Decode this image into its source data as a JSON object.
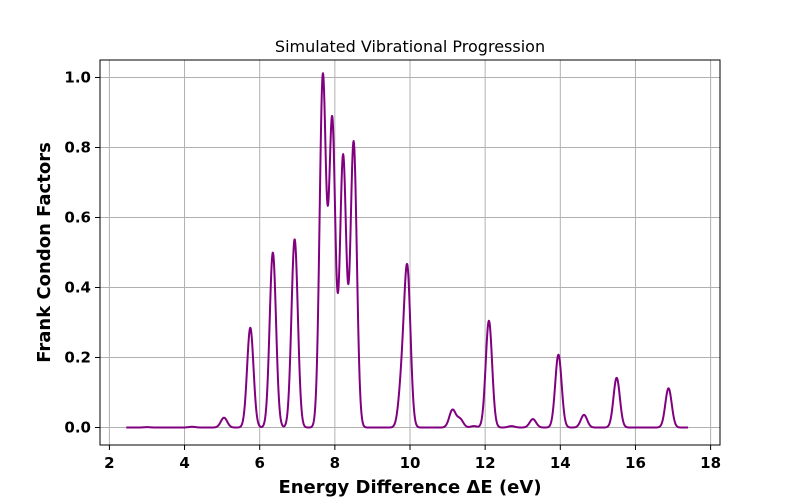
{
  "chart_data": {
    "type": "line",
    "title": "Simulated Vibrational Progression",
    "xlabel": "Energy Difference ΔE (eV)",
    "ylabel": "Frank Condon Factors",
    "xlim": [
      1.75,
      18.25
    ],
    "ylim": [
      -0.05,
      1.05
    ],
    "xticks": [
      2,
      4,
      6,
      8,
      10,
      12,
      14,
      16,
      18
    ],
    "yticks": [
      0.0,
      0.2,
      0.4,
      0.6,
      0.8,
      1.0
    ],
    "xtick_labels": [
      "2",
      "4",
      "6",
      "8",
      "10",
      "12",
      "14",
      "16",
      "18"
    ],
    "ytick_labels": [
      "0.0",
      "0.2",
      "0.4",
      "0.6",
      "0.8",
      "1.0"
    ],
    "grid": true,
    "x_range": [
      2.45,
      17.4
    ],
    "line_width": 0.085,
    "series": [
      {
        "color": "#800080",
        "peaks": [
          {
            "x": 3.0,
            "y": 0.001
          },
          {
            "x": 4.2,
            "y": 0.002
          },
          {
            "x": 5.05,
            "y": 0.028
          },
          {
            "x": 5.75,
            "y": 0.285
          },
          {
            "x": 6.35,
            "y": 0.5
          },
          {
            "x": 6.93,
            "y": 0.538
          },
          {
            "x": 7.68,
            "y": 1.0
          },
          {
            "x": 7.93,
            "y": 0.875
          },
          {
            "x": 8.22,
            "y": 0.775
          },
          {
            "x": 8.5,
            "y": 0.815
          },
          {
            "x": 9.78,
            "y": 0.12
          },
          {
            "x": 9.93,
            "y": 0.44
          },
          {
            "x": 11.13,
            "y": 0.05
          },
          {
            "x": 11.33,
            "y": 0.024
          },
          {
            "x": 11.7,
            "y": 0.004
          },
          {
            "x": 12.1,
            "y": 0.305
          },
          {
            "x": 12.7,
            "y": 0.004
          },
          {
            "x": 13.27,
            "y": 0.024
          },
          {
            "x": 13.95,
            "y": 0.208
          },
          {
            "x": 14.63,
            "y": 0.036
          },
          {
            "x": 15.5,
            "y": 0.142
          },
          {
            "x": 16.88,
            "y": 0.112
          }
        ]
      }
    ]
  }
}
